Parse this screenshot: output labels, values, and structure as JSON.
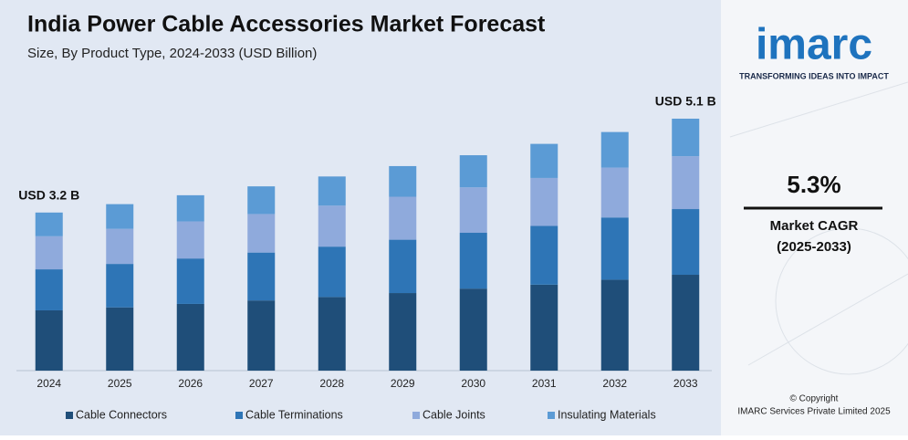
{
  "chart_data": {
    "type": "stacked_bar",
    "title": "India Power Cable Accessories Market Forecast",
    "subtitle": "Size, By Product Type, 2024-2033 (USD Billion)",
    "categories": [
      "2024",
      "2025",
      "2026",
      "2027",
      "2028",
      "2029",
      "2030",
      "2031",
      "2032",
      "2033"
    ],
    "series": [
      {
        "name": "Cable Connectors",
        "color": "#1f4e79",
        "values": [
          1.22,
          1.28,
          1.35,
          1.42,
          1.49,
          1.57,
          1.66,
          1.74,
          1.84,
          1.94
        ]
      },
      {
        "name": "Cable Terminations",
        "color": "#2e75b6",
        "values": [
          0.83,
          0.88,
          0.92,
          0.97,
          1.02,
          1.08,
          1.13,
          1.19,
          1.26,
          1.33
        ]
      },
      {
        "name": "Cable Joints",
        "color": "#8faadc",
        "values": [
          0.67,
          0.71,
          0.75,
          0.78,
          0.83,
          0.87,
          0.92,
          0.97,
          1.01,
          1.07
        ]
      },
      {
        "name": "Insulating Materials",
        "color": "#5b9bd5",
        "values": [
          0.48,
          0.5,
          0.53,
          0.56,
          0.59,
          0.62,
          0.65,
          0.69,
          0.72,
          0.76
        ]
      }
    ],
    "annotations": [
      {
        "category": 0,
        "text": "USD 3.2 B"
      },
      {
        "category": 9,
        "text": "USD 5.1 B"
      }
    ],
    "legend": "bottom"
  },
  "side_panel": {
    "logo": "imarc",
    "tagline": "TRANSFORMING IDEAS INTO IMPACT",
    "cagr": "5.3%",
    "cagr_label": "Market CAGR",
    "cagr_period": "(2025-2033)",
    "copyright": "© Copyright",
    "company": "IMARC Services Private Limited 2025"
  }
}
